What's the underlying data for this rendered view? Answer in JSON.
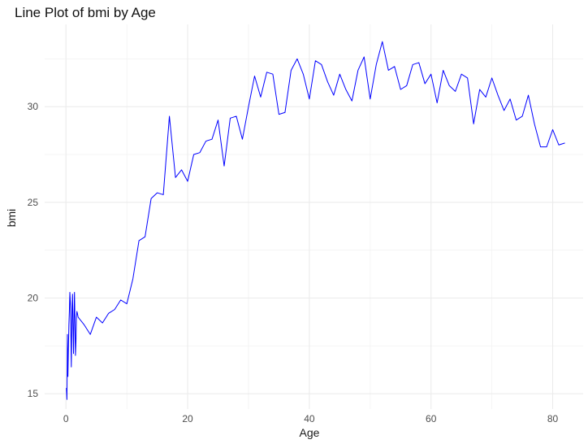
{
  "chart_data": {
    "type": "line",
    "title": "Line Plot of bmi by Age",
    "xlabel": "Age",
    "ylabel": "bmi",
    "xlim": [
      -3.5,
      85
    ],
    "ylim": [
      14.2,
      34.3
    ],
    "x_ticks": [
      0,
      20,
      40,
      60,
      80
    ],
    "y_ticks": [
      15,
      20,
      25,
      30
    ],
    "grid": true,
    "line_color": "#0000ff",
    "series": [
      {
        "x": [
          0.08,
          0.16,
          0.24,
          0.32,
          0.4,
          0.48,
          0.56,
          0.64,
          0.72,
          0.8,
          0.88,
          1.0,
          1.08,
          1.16,
          1.24,
          1.32,
          1.4,
          1.48,
          1.56,
          1.64,
          1.72,
          1.8,
          1.88,
          2,
          3,
          4,
          5,
          6,
          7,
          8,
          9,
          10,
          11,
          12,
          13,
          14,
          15,
          16,
          17,
          18,
          19,
          20,
          21,
          22,
          23,
          24,
          25,
          26,
          27,
          28,
          29,
          30,
          31,
          32,
          33,
          34,
          35,
          36,
          37,
          38,
          39,
          40,
          41,
          42,
          43,
          44,
          45,
          46,
          47,
          48,
          49,
          50,
          51,
          52,
          53,
          54,
          55,
          56,
          57,
          58,
          59,
          60,
          61,
          62,
          63,
          64,
          65,
          66,
          67,
          68,
          69,
          70,
          71,
          72,
          73,
          74,
          75,
          76,
          77,
          78,
          79,
          80,
          81,
          82
        ],
        "y": [
          15.3,
          14.7,
          18.1,
          15.9,
          17.3,
          18.6,
          19.3,
          20.3,
          19.8,
          18.3,
          16.4,
          19.5,
          20.2,
          18.5,
          17.1,
          18.9,
          20.3,
          18.8,
          17.0,
          17.7,
          19.0,
          19.3,
          19.2,
          19.0,
          18.6,
          18.1,
          19.0,
          18.7,
          19.2,
          19.4,
          19.9,
          19.7,
          21.0,
          23.0,
          23.2,
          25.2,
          25.5,
          25.4,
          29.5,
          26.3,
          26.7,
          26.1,
          27.5,
          27.6,
          28.2,
          28.3,
          29.3,
          26.9,
          29.4,
          29.5,
          28.3,
          30.0,
          31.6,
          30.5,
          31.8,
          31.7,
          29.6,
          29.7,
          31.9,
          32.5,
          31.7,
          30.4,
          32.4,
          32.2,
          31.3,
          30.6,
          31.7,
          30.9,
          30.3,
          31.9,
          32.6,
          30.4,
          32.2,
          33.4,
          31.9,
          32.1,
          30.9,
          31.1,
          32.2,
          32.3,
          31.2,
          31.7,
          30.2,
          31.9,
          31.1,
          30.8,
          31.7,
          31.5,
          29.1,
          30.9,
          30.5,
          31.5,
          30.6,
          29.8,
          30.4,
          29.3,
          29.5,
          30.6,
          29.1,
          27.9,
          27.9,
          28.8,
          28.0,
          28.1
        ]
      }
    ]
  }
}
